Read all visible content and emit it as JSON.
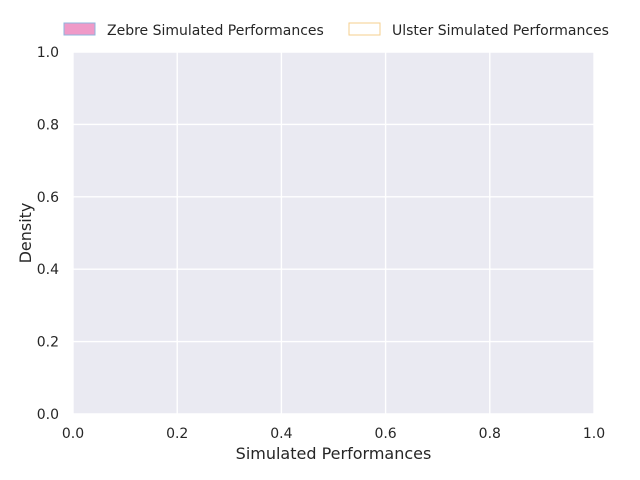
{
  "chart_data": {
    "type": "area",
    "title": "",
    "xlabel": "Simulated Performances",
    "ylabel": "Density",
    "xlim": [
      0.0,
      1.0
    ],
    "ylim": [
      0.0,
      1.0
    ],
    "xticks": [
      0.0,
      0.2,
      0.4,
      0.6,
      0.8,
      1.0
    ],
    "yticks": [
      0.0,
      0.2,
      0.4,
      0.6,
      0.8,
      1.0
    ],
    "xtick_labels": [
      "0.0",
      "0.2",
      "0.4",
      "0.6",
      "0.8",
      "1.0"
    ],
    "ytick_labels": [
      "0.0",
      "0.2",
      "0.4",
      "0.6",
      "0.8",
      "1.0"
    ],
    "grid": true,
    "legend_position": "top",
    "plot_background": "#eaeaf2",
    "grid_color": "#ffffff",
    "series": [
      {
        "name": "Zebre Simulated Performances",
        "fill": "#ef9ac8",
        "edge": "#8fb4dc",
        "values": []
      },
      {
        "name": "Ulster Simulated Performances",
        "fill": "#ffffff",
        "edge": "#f5cf8e",
        "values": []
      }
    ]
  }
}
